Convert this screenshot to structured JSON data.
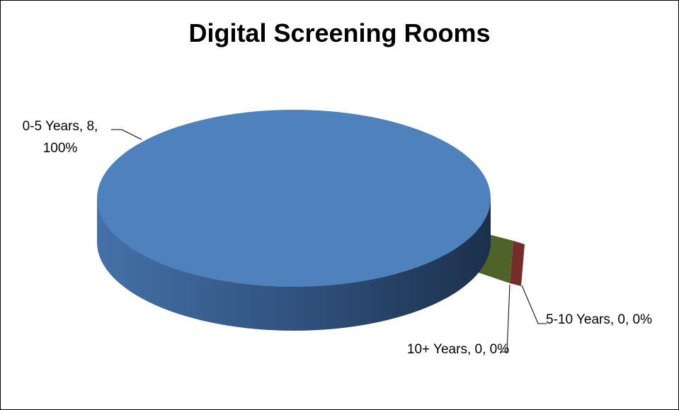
{
  "chart_data": {
    "type": "pie",
    "title": "Digital Screening Rooms",
    "categories": [
      "0-5 Years",
      "5-10 Years",
      "10+ Years"
    ],
    "values": [
      8,
      0,
      0
    ],
    "value_labels": [
      "0-5 Years, 8, 100%",
      "5-10 Years, 0, 0%",
      "10+ Years, 0, 0%"
    ],
    "colors": [
      "#4f81bd",
      "#772c2a",
      "#4f6228"
    ]
  }
}
